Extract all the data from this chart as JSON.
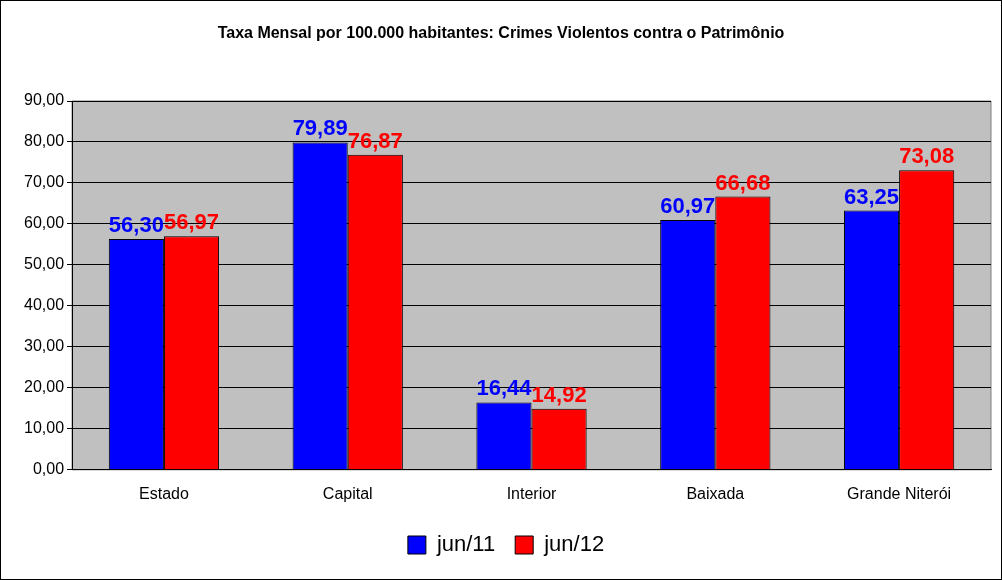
{
  "chart_data": {
    "type": "bar",
    "title": "Taxa Mensal por 100.000 habitantes: Crimes Violentos contra o Patrimônio",
    "categories": [
      "Estado",
      "Capital",
      "Interior",
      "Baixada",
      "Grande Niterói"
    ],
    "series": [
      {
        "name": "jun/11",
        "color": "#0000ff",
        "values": [
          56.3,
          79.89,
          16.44,
          60.97,
          63.25
        ],
        "value_labels": [
          "56,30",
          "79,89",
          "16,44",
          "60,97",
          "63,25"
        ]
      },
      {
        "name": "jun/12",
        "color": "#ff0000",
        "values": [
          56.97,
          76.87,
          14.92,
          66.68,
          73.08
        ],
        "value_labels": [
          "56,97",
          "76,87",
          "14,92",
          "66,68",
          "73,08"
        ]
      }
    ],
    "ylim": [
      0,
      90
    ],
    "yticks": [
      {
        "value": 0,
        "label": "0,00"
      },
      {
        "value": 10,
        "label": "10,00"
      },
      {
        "value": 20,
        "label": "20,00"
      },
      {
        "value": 30,
        "label": "30,00"
      },
      {
        "value": 40,
        "label": "40,00"
      },
      {
        "value": 50,
        "label": "50,00"
      },
      {
        "value": 60,
        "label": "60,00"
      },
      {
        "value": 70,
        "label": "70,00"
      },
      {
        "value": 80,
        "label": "80,00"
      },
      {
        "value": 90,
        "label": "90,00"
      }
    ],
    "grid": "y",
    "legend": "bottom"
  }
}
